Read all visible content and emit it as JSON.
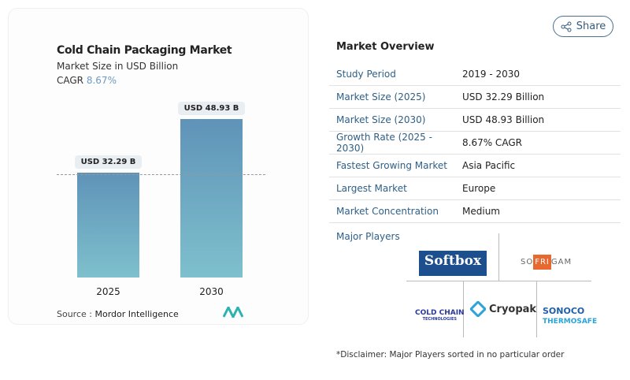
{
  "chart": {
    "title": "Cold Chain Packaging Market",
    "subtitle": "Market Size in USD Billion",
    "cagr_label": "CAGR",
    "cagr_value": "8.67%",
    "source_label": "Source :",
    "source_value": "Mordor Intelligence",
    "logo_text": "MI"
  },
  "chart_data": {
    "type": "bar",
    "title": "Cold Chain Packaging Market",
    "categories": [
      "2025",
      "2030"
    ],
    "values": [
      32.29,
      48.93
    ],
    "data_labels": [
      "USD 32.29 B",
      "USD 48.93 B"
    ],
    "ylabel": "Market Size in USD Billion",
    "bar_color": "#6aa6c4"
  },
  "share": {
    "label": "Share",
    "icon": "share-icon"
  },
  "overview": {
    "title": "Market Overview",
    "rows": [
      {
        "label": "Study Period",
        "value": "2019 - 2030"
      },
      {
        "label": "Market Size (2025)",
        "value": "USD 32.29 Billion"
      },
      {
        "label": "Market Size (2030)",
        "value": "USD 48.93 Billion"
      },
      {
        "label": "Growth Rate (2025 - 2030)",
        "value": "8.67% CAGR"
      },
      {
        "label": "Fastest Growing Market",
        "value": "Asia Pacific"
      },
      {
        "label": "Largest Market",
        "value": "Europe"
      },
      {
        "label": "Market Concentration",
        "value": "Medium"
      }
    ]
  },
  "players": {
    "title": "Major Players",
    "logos": [
      "Softbox",
      "SOFRIGAM",
      "Cold Chain Technologies",
      "Cryopak",
      "Sonoco ThermoSafe"
    ]
  },
  "disclaimer": "*Disclaimer: Major Players sorted in no particular order"
}
